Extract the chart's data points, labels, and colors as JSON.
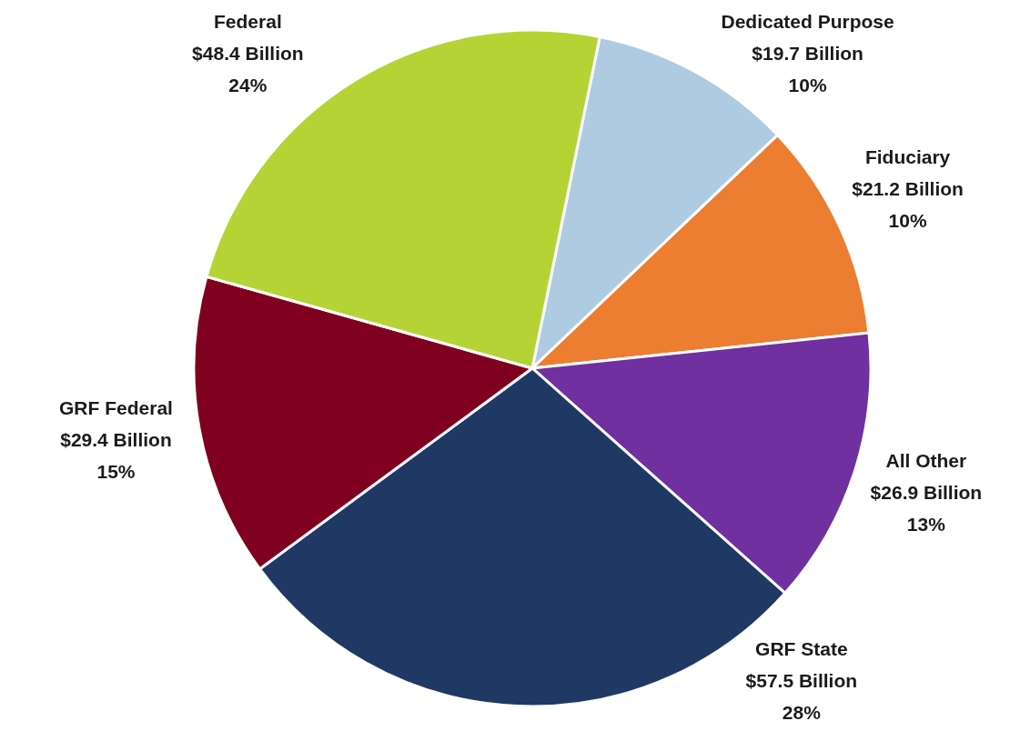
{
  "chart_data": {
    "type": "pie",
    "categories": [
      "Dedicated Purpose",
      "Fiduciary",
      "All Other",
      "GRF State",
      "GRF Federal",
      "Federal"
    ],
    "values": [
      19.7,
      21.2,
      26.9,
      57.5,
      29.4,
      48.4
    ],
    "colors": [
      "#aecbe1",
      "#ed7d31",
      "#7030a0",
      "#203864",
      "#800020",
      "#b5d334"
    ],
    "value_labels": [
      "$19.7 Billion\n10%",
      "$21.2 Billion\n10%",
      "$26.9 Billion\n13%",
      "$57.5 Billion\n28%",
      "$29.4 Billion\n15%",
      "$48.4 Billion\n24%"
    ],
    "legend": false
  }
}
